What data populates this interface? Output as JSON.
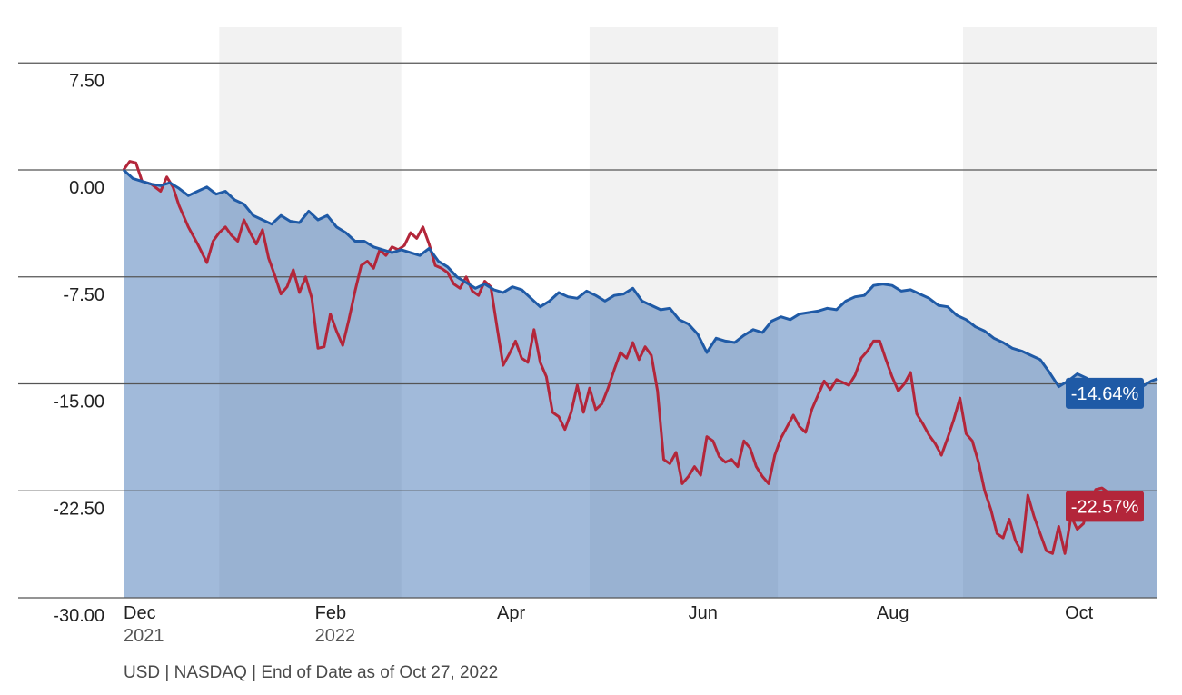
{
  "chart_data": {
    "type": "line",
    "ylim": [
      -30,
      7.5
    ],
    "yticks": [
      7.5,
      0,
      -7.5,
      -15,
      -22.5,
      -30
    ],
    "ytick_labels": [
      "7.50",
      "0.00",
      "-7.50",
      "-15.00",
      "-22.50",
      "-30.00"
    ],
    "xticks": [
      {
        "label": "Dec",
        "sublabel": "2021",
        "x": 0
      },
      {
        "label": "Feb",
        "sublabel": "2022",
        "x": 62
      },
      {
        "label": "Apr",
        "sublabel": "",
        "x": 121
      },
      {
        "label": "Jun",
        "sublabel": "",
        "x": 183
      },
      {
        "label": "Aug",
        "sublabel": "",
        "x": 244
      },
      {
        "label": "Oct",
        "sublabel": "",
        "x": 305
      }
    ],
    "x_range": [
      0,
      335
    ],
    "shaded_bands": [
      [
        31,
        90
      ],
      [
        151,
        212
      ],
      [
        272,
        335
      ]
    ],
    "grid": true,
    "series": [
      {
        "color": "#1f5aa6",
        "fill": true,
        "end_label": "-14.64%",
        "points": [
          [
            0,
            0
          ],
          [
            3,
            -0.6
          ],
          [
            6,
            -0.8
          ],
          [
            9,
            -1
          ],
          [
            12,
            -1.1
          ],
          [
            15,
            -0.9
          ],
          [
            18,
            -1.3
          ],
          [
            21,
            -1.8
          ],
          [
            24,
            -1.5
          ],
          [
            27,
            -1.2
          ],
          [
            30,
            -1.7
          ],
          [
            33,
            -1.5
          ],
          [
            36,
            -2.1
          ],
          [
            39,
            -2.4
          ],
          [
            42,
            -3.2
          ],
          [
            45,
            -3.5
          ],
          [
            48,
            -3.8
          ],
          [
            51,
            -3.2
          ],
          [
            54,
            -3.6
          ],
          [
            57,
            -3.7
          ],
          [
            60,
            -2.9
          ],
          [
            63,
            -3.5
          ],
          [
            66,
            -3.2
          ],
          [
            69,
            -4
          ],
          [
            72,
            -4.4
          ],
          [
            75,
            -5
          ],
          [
            78,
            -5
          ],
          [
            81,
            -5.4
          ],
          [
            84,
            -5.6
          ],
          [
            87,
            -5.8
          ],
          [
            90,
            -5.6
          ],
          [
            93,
            -5.8
          ],
          [
            96,
            -6
          ],
          [
            99,
            -5.5
          ],
          [
            102,
            -6.4
          ],
          [
            105,
            -6.8
          ],
          [
            108,
            -7.5
          ],
          [
            111,
            -7.9
          ],
          [
            114,
            -8.3
          ],
          [
            117,
            -8
          ],
          [
            120,
            -8.4
          ],
          [
            123,
            -8.6
          ],
          [
            126,
            -8.2
          ],
          [
            129,
            -8.4
          ],
          [
            132,
            -9
          ],
          [
            135,
            -9.6
          ],
          [
            138,
            -9.2
          ],
          [
            141,
            -8.6
          ],
          [
            144,
            -8.9
          ],
          [
            147,
            -9
          ],
          [
            150,
            -8.5
          ],
          [
            153,
            -8.8
          ],
          [
            156,
            -9.2
          ],
          [
            159,
            -8.8
          ],
          [
            162,
            -8.7
          ],
          [
            165,
            -8.3
          ],
          [
            168,
            -9.2
          ],
          [
            171,
            -9.5
          ],
          [
            174,
            -9.8
          ],
          [
            177,
            -9.7
          ],
          [
            180,
            -10.5
          ],
          [
            183,
            -10.8
          ],
          [
            186,
            -11.5
          ],
          [
            189,
            -12.8
          ],
          [
            192,
            -11.8
          ],
          [
            195,
            -12
          ],
          [
            198,
            -12.1
          ],
          [
            201,
            -11.6
          ],
          [
            204,
            -11.2
          ],
          [
            207,
            -11.4
          ],
          [
            210,
            -10.6
          ],
          [
            213,
            -10.3
          ],
          [
            216,
            -10.5
          ],
          [
            219,
            -10.1
          ],
          [
            222,
            -10
          ],
          [
            225,
            -9.9
          ],
          [
            228,
            -9.7
          ],
          [
            231,
            -9.8
          ],
          [
            234,
            -9.2
          ],
          [
            237,
            -8.9
          ],
          [
            240,
            -8.8
          ],
          [
            243,
            -8.1
          ],
          [
            246,
            -8
          ],
          [
            249,
            -8.1
          ],
          [
            252,
            -8.5
          ],
          [
            255,
            -8.4
          ],
          [
            258,
            -8.7
          ],
          [
            261,
            -9
          ],
          [
            264,
            -9.5
          ],
          [
            267,
            -9.6
          ],
          [
            270,
            -10.2
          ],
          [
            273,
            -10.5
          ],
          [
            276,
            -11
          ],
          [
            279,
            -11.3
          ],
          [
            282,
            -11.8
          ],
          [
            285,
            -12.1
          ],
          [
            288,
            -12.5
          ],
          [
            291,
            -12.7
          ],
          [
            294,
            -13
          ],
          [
            297,
            -13.3
          ],
          [
            300,
            -14.2
          ],
          [
            303,
            -15.2
          ],
          [
            306,
            -14.8
          ],
          [
            309,
            -14.3
          ],
          [
            312,
            -14.6
          ],
          [
            315,
            -15.2
          ],
          [
            318,
            -15.3
          ],
          [
            321,
            -15.5
          ],
          [
            324,
            -15.3
          ],
          [
            327,
            -15.4
          ],
          [
            330,
            -15.2
          ],
          [
            333,
            -14.8
          ],
          [
            335,
            -14.64
          ]
        ]
      },
      {
        "color": "#b3263a",
        "fill": false,
        "end_label": "-22.57%",
        "points": [
          [
            0,
            0
          ],
          [
            2,
            0.6
          ],
          [
            4,
            0.5
          ],
          [
            6,
            -0.8
          ],
          [
            9,
            -1
          ],
          [
            12,
            -1.5
          ],
          [
            14,
            -0.5
          ],
          [
            16,
            -1.2
          ],
          [
            18,
            -2.5
          ],
          [
            21,
            -4
          ],
          [
            24,
            -5.2
          ],
          [
            27,
            -6.5
          ],
          [
            29,
            -5
          ],
          [
            31,
            -4.4
          ],
          [
            33,
            -4
          ],
          [
            35,
            -4.6
          ],
          [
            37,
            -5
          ],
          [
            39,
            -3.5
          ],
          [
            41,
            -4.4
          ],
          [
            43,
            -5.2
          ],
          [
            45,
            -4.2
          ],
          [
            47,
            -6.2
          ],
          [
            49,
            -7.4
          ],
          [
            51,
            -8.7
          ],
          [
            53,
            -8.2
          ],
          [
            55,
            -7
          ],
          [
            57,
            -8.6
          ],
          [
            59,
            -7.5
          ],
          [
            61,
            -9
          ],
          [
            63,
            -12.5
          ],
          [
            65,
            -12.4
          ],
          [
            67,
            -10.1
          ],
          [
            69,
            -11.3
          ],
          [
            71,
            -12.3
          ],
          [
            73,
            -10.5
          ],
          [
            75,
            -8.5
          ],
          [
            77,
            -6.7
          ],
          [
            79,
            -6.4
          ],
          [
            81,
            -6.9
          ],
          [
            83,
            -5.6
          ],
          [
            85,
            -6
          ],
          [
            87,
            -5.4
          ],
          [
            89,
            -5.6
          ],
          [
            91,
            -5.3
          ],
          [
            93,
            -4.4
          ],
          [
            95,
            -4.8
          ],
          [
            97,
            -4
          ],
          [
            99,
            -5.2
          ],
          [
            101,
            -6.7
          ],
          [
            103,
            -6.9
          ],
          [
            105,
            -7.2
          ],
          [
            107,
            -8
          ],
          [
            109,
            -8.3
          ],
          [
            111,
            -7.5
          ],
          [
            113,
            -8.5
          ],
          [
            115,
            -8.8
          ],
          [
            117,
            -7.8
          ],
          [
            119,
            -8.2
          ],
          [
            121,
            -11
          ],
          [
            123,
            -13.7
          ],
          [
            125,
            -12.9
          ],
          [
            127,
            -12
          ],
          [
            129,
            -13.2
          ],
          [
            131,
            -13.5
          ],
          [
            133,
            -11.2
          ],
          [
            135,
            -13.5
          ],
          [
            137,
            -14.5
          ],
          [
            139,
            -17
          ],
          [
            141,
            -17.3
          ],
          [
            143,
            -18.2
          ],
          [
            145,
            -17
          ],
          [
            147,
            -15.1
          ],
          [
            149,
            -17
          ],
          [
            151,
            -15.3
          ],
          [
            153,
            -16.8
          ],
          [
            155,
            -16.4
          ],
          [
            157,
            -15.3
          ],
          [
            159,
            -14
          ],
          [
            161,
            -12.8
          ],
          [
            163,
            -13.2
          ],
          [
            165,
            -12.1
          ],
          [
            167,
            -13.3
          ],
          [
            169,
            -12.4
          ],
          [
            171,
            -13
          ],
          [
            173,
            -15.5
          ],
          [
            175,
            -20.3
          ],
          [
            177,
            -20.6
          ],
          [
            179,
            -19.8
          ],
          [
            181,
            -22
          ],
          [
            183,
            -21.5
          ],
          [
            185,
            -20.8
          ],
          [
            187,
            -21.4
          ],
          [
            189,
            -18.7
          ],
          [
            191,
            -19
          ],
          [
            193,
            -20.1
          ],
          [
            195,
            -20.5
          ],
          [
            197,
            -20.3
          ],
          [
            199,
            -20.8
          ],
          [
            201,
            -19
          ],
          [
            203,
            -19.5
          ],
          [
            205,
            -20.8
          ],
          [
            207,
            -21.5
          ],
          [
            209,
            -22
          ],
          [
            211,
            -20
          ],
          [
            213,
            -18.8
          ],
          [
            215,
            -18
          ],
          [
            217,
            -17.2
          ],
          [
            219,
            -18
          ],
          [
            221,
            -18.4
          ],
          [
            223,
            -16.8
          ],
          [
            225,
            -15.8
          ],
          [
            227,
            -14.8
          ],
          [
            229,
            -15.4
          ],
          [
            231,
            -14.7
          ],
          [
            233,
            -14.9
          ],
          [
            235,
            -15.1
          ],
          [
            237,
            -14.4
          ],
          [
            239,
            -13.2
          ],
          [
            241,
            -12.7
          ],
          [
            243,
            -12
          ],
          [
            245,
            -12
          ],
          [
            247,
            -13.3
          ],
          [
            249,
            -14.5
          ],
          [
            251,
            -15.5
          ],
          [
            253,
            -15
          ],
          [
            255,
            -14.2
          ],
          [
            257,
            -17.1
          ],
          [
            259,
            -17.8
          ],
          [
            261,
            -18.6
          ],
          [
            263,
            -19.2
          ],
          [
            265,
            -20
          ],
          [
            267,
            -18.8
          ],
          [
            269,
            -17.5
          ],
          [
            271,
            -16
          ],
          [
            273,
            -18.5
          ],
          [
            275,
            -19
          ],
          [
            277,
            -20.5
          ],
          [
            279,
            -22.5
          ],
          [
            281,
            -23.8
          ],
          [
            283,
            -25.5
          ],
          [
            285,
            -25.8
          ],
          [
            287,
            -24.5
          ],
          [
            289,
            -26
          ],
          [
            291,
            -26.8
          ],
          [
            293,
            -22.8
          ],
          [
            295,
            -24.3
          ],
          [
            297,
            -25.5
          ],
          [
            299,
            -26.7
          ],
          [
            301,
            -26.9
          ],
          [
            303,
            -25
          ],
          [
            305,
            -26.9
          ],
          [
            307,
            -24.3
          ],
          [
            309,
            -25.2
          ],
          [
            311,
            -24.8
          ],
          [
            313,
            -23.3
          ],
          [
            315,
            -22.4
          ],
          [
            317,
            -22.3
          ],
          [
            319,
            -22.6
          ],
          [
            320,
            -22.57
          ]
        ]
      }
    ]
  },
  "footer": "USD | NASDAQ | End of Date as of Oct 27, 2022"
}
